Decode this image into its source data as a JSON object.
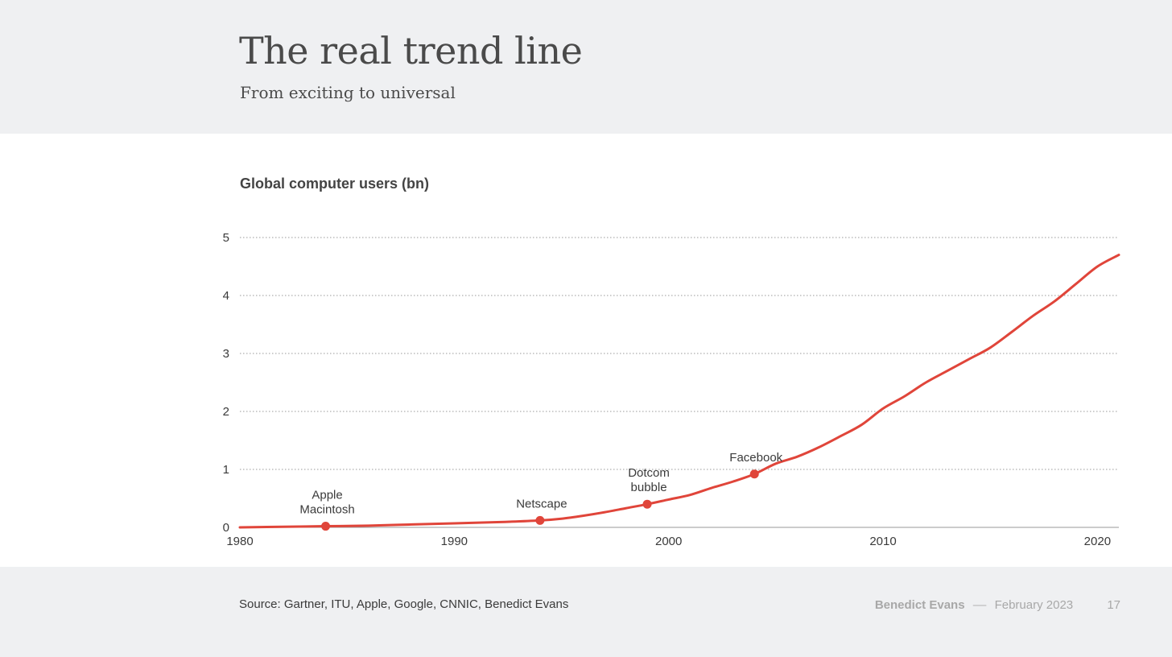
{
  "slide": {
    "title": "The real trend line",
    "subtitle": "From exciting to universal"
  },
  "footer": {
    "source": "Source: Gartner, ITU, Apple, Google, CNNIC, Benedict Evans",
    "author": "Benedict Evans",
    "separator": "––",
    "date": "February 2023",
    "page_number": "17"
  },
  "colors": {
    "line": "#e0453a",
    "grid": "#9a9a9a",
    "axis": "#9a9a9a",
    "text": "#3a3a3a"
  },
  "chart_data": {
    "type": "line",
    "title": "Global computer users (bn)",
    "xlabel": "",
    "ylabel": "",
    "xlim": [
      1980,
      2021
    ],
    "ylim": [
      0,
      5
    ],
    "x_ticks": [
      1980,
      1990,
      2000,
      2010,
      2020
    ],
    "y_ticks": [
      0,
      1,
      2,
      3,
      4,
      5
    ],
    "grid": "horizontal dotted",
    "legend": "none",
    "series": [
      {
        "x": [
          1980,
          1982,
          1984,
          1986,
          1988,
          1990,
          1992,
          1994,
          1995,
          1996,
          1997,
          1998,
          1999,
          2000,
          2001,
          2002,
          2003,
          2004,
          2005,
          2006,
          2007,
          2008,
          2009,
          2010,
          2011,
          2012,
          2013,
          2014,
          2015,
          2016,
          2017,
          2018,
          2019,
          2020,
          2021
        ],
        "y": [
          0.0,
          0.01,
          0.02,
          0.03,
          0.05,
          0.07,
          0.09,
          0.12,
          0.15,
          0.2,
          0.26,
          0.33,
          0.4,
          0.48,
          0.56,
          0.68,
          0.79,
          0.92,
          1.1,
          1.22,
          1.38,
          1.57,
          1.77,
          2.05,
          2.26,
          2.5,
          2.7,
          2.9,
          3.1,
          3.37,
          3.65,
          3.9,
          4.2,
          4.5,
          4.7
        ]
      }
    ],
    "annotations": [
      {
        "x": 1984,
        "y": 0.02,
        "label_lines": [
          "Apple",
          "Macintosh"
        ]
      },
      {
        "x": 1994,
        "y": 0.12,
        "label_lines": [
          "Netscape"
        ]
      },
      {
        "x": 1999,
        "y": 0.4,
        "label_lines": [
          "Dotcom",
          "bubble"
        ]
      },
      {
        "x": 2004,
        "y": 0.92,
        "label_lines": [
          "Facebook"
        ]
      }
    ]
  }
}
